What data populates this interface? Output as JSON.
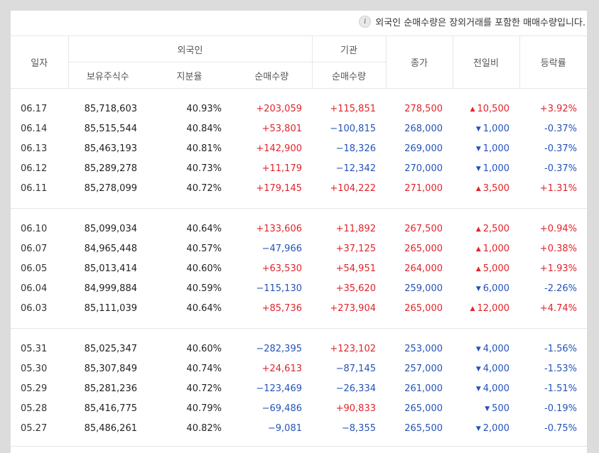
{
  "notice": {
    "icon": "info-icon",
    "text": "외국인 순매수량은 장외거래를 포함한 매매수량입니다."
  },
  "headers": {
    "date": "일자",
    "foreign": "외국인",
    "institution": "기관",
    "close": "종가",
    "change": "전일비",
    "rate": "등락률",
    "holdings": "보유주식수",
    "share": "지분율",
    "foreign_net": "순매수량",
    "inst_net": "순매수량"
  },
  "colors": {
    "up": "#e0242a",
    "down": "#2453b8"
  },
  "groups": [
    [
      {
        "date": "06.17",
        "holdings": "85,718,603",
        "share": "40.93%",
        "foreign_net": "+203,059",
        "inst_net": "+115,851",
        "close": "278,500",
        "dir": "up",
        "change": "10,500",
        "rate": "+3.92%"
      },
      {
        "date": "06.14",
        "holdings": "85,515,544",
        "share": "40.84%",
        "foreign_net": "+53,801",
        "inst_net": "−100,815",
        "close": "268,000",
        "dir": "down",
        "change": "1,000",
        "rate": "-0.37%"
      },
      {
        "date": "06.13",
        "holdings": "85,463,193",
        "share": "40.81%",
        "foreign_net": "+142,900",
        "inst_net": "−18,326",
        "close": "269,000",
        "dir": "down",
        "change": "1,000",
        "rate": "-0.37%"
      },
      {
        "date": "06.12",
        "holdings": "85,289,278",
        "share": "40.73%",
        "foreign_net": "+11,179",
        "inst_net": "−12,342",
        "close": "270,000",
        "dir": "down",
        "change": "1,000",
        "rate": "-0.37%"
      },
      {
        "date": "06.11",
        "holdings": "85,278,099",
        "share": "40.72%",
        "foreign_net": "+179,145",
        "inst_net": "+104,222",
        "close": "271,000",
        "dir": "up",
        "change": "3,500",
        "rate": "+1.31%"
      }
    ],
    [
      {
        "date": "06.10",
        "holdings": "85,099,034",
        "share": "40.64%",
        "foreign_net": "+133,606",
        "inst_net": "+11,892",
        "close": "267,500",
        "dir": "up",
        "change": "2,500",
        "rate": "+0.94%"
      },
      {
        "date": "06.07",
        "holdings": "84,965,448",
        "share": "40.57%",
        "foreign_net": "−47,966",
        "inst_net": "+37,125",
        "close": "265,000",
        "dir": "up",
        "change": "1,000",
        "rate": "+0.38%"
      },
      {
        "date": "06.05",
        "holdings": "85,013,414",
        "share": "40.60%",
        "foreign_net": "+63,530",
        "inst_net": "+54,951",
        "close": "264,000",
        "dir": "up",
        "change": "5,000",
        "rate": "+1.93%"
      },
      {
        "date": "06.04",
        "holdings": "84,999,884",
        "share": "40.59%",
        "foreign_net": "−115,130",
        "inst_net": "+35,620",
        "close": "259,000",
        "dir": "down",
        "change": "6,000",
        "rate": "-2.26%"
      },
      {
        "date": "06.03",
        "holdings": "85,111,039",
        "share": "40.64%",
        "foreign_net": "+85,736",
        "inst_net": "+273,904",
        "close": "265,000",
        "dir": "up",
        "change": "12,000",
        "rate": "+4.74%"
      }
    ],
    [
      {
        "date": "05.31",
        "holdings": "85,025,347",
        "share": "40.60%",
        "foreign_net": "−282,395",
        "inst_net": "+123,102",
        "close": "253,000",
        "dir": "down",
        "change": "4,000",
        "rate": "-1.56%"
      },
      {
        "date": "05.30",
        "holdings": "85,307,849",
        "share": "40.74%",
        "foreign_net": "+24,613",
        "inst_net": "−87,145",
        "close": "257,000",
        "dir": "down",
        "change": "4,000",
        "rate": "-1.53%"
      },
      {
        "date": "05.29",
        "holdings": "85,281,236",
        "share": "40.72%",
        "foreign_net": "−123,469",
        "inst_net": "−26,334",
        "close": "261,000",
        "dir": "down",
        "change": "4,000",
        "rate": "-1.51%"
      },
      {
        "date": "05.28",
        "holdings": "85,416,775",
        "share": "40.79%",
        "foreign_net": "−69,486",
        "inst_net": "+90,833",
        "close": "265,000",
        "dir": "down",
        "change": "500",
        "rate": "-0.19%"
      },
      {
        "date": "05.27",
        "holdings": "85,486,261",
        "share": "40.82%",
        "foreign_net": "−9,081",
        "inst_net": "−8,355",
        "close": "265,500",
        "dir": "down",
        "change": "2,000",
        "rate": "-0.75%"
      }
    ]
  ]
}
